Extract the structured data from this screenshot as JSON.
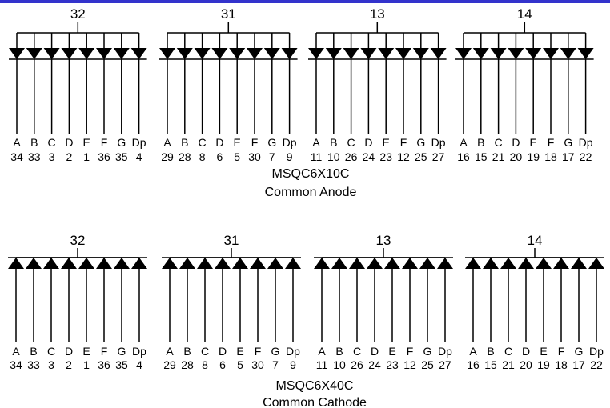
{
  "accent_color": "#3333cc",
  "segment_letters": [
    "A",
    "B",
    "C",
    "D",
    "E",
    "F",
    "G",
    "Dp"
  ],
  "anode": {
    "model": "MSQC6X10C",
    "type": "Common Anode",
    "digits": [
      {
        "common_pin": "32",
        "pins": [
          "34",
          "33",
          "3",
          "2",
          "1",
          "36",
          "35",
          "4"
        ]
      },
      {
        "common_pin": "31",
        "pins": [
          "29",
          "28",
          "8",
          "6",
          "5",
          "30",
          "7",
          "9"
        ]
      },
      {
        "common_pin": "13",
        "pins": [
          "11",
          "10",
          "26",
          "24",
          "23",
          "12",
          "25",
          "27"
        ]
      },
      {
        "common_pin": "14",
        "pins": [
          "16",
          "15",
          "21",
          "20",
          "19",
          "18",
          "17",
          "22"
        ]
      }
    ]
  },
  "cathode": {
    "model": "MSQC6X40C",
    "type": "Common Cathode",
    "digits": [
      {
        "common_pin": "32",
        "pins": [
          "34",
          "33",
          "3",
          "2",
          "1",
          "36",
          "35",
          "4"
        ]
      },
      {
        "common_pin": "31",
        "pins": [
          "29",
          "28",
          "8",
          "6",
          "5",
          "30",
          "7",
          "9"
        ]
      },
      {
        "common_pin": "13",
        "pins": [
          "11",
          "10",
          "26",
          "24",
          "23",
          "12",
          "25",
          "27"
        ]
      },
      {
        "common_pin": "14",
        "pins": [
          "16",
          "15",
          "21",
          "20",
          "19",
          "18",
          "17",
          "22"
        ]
      }
    ]
  }
}
